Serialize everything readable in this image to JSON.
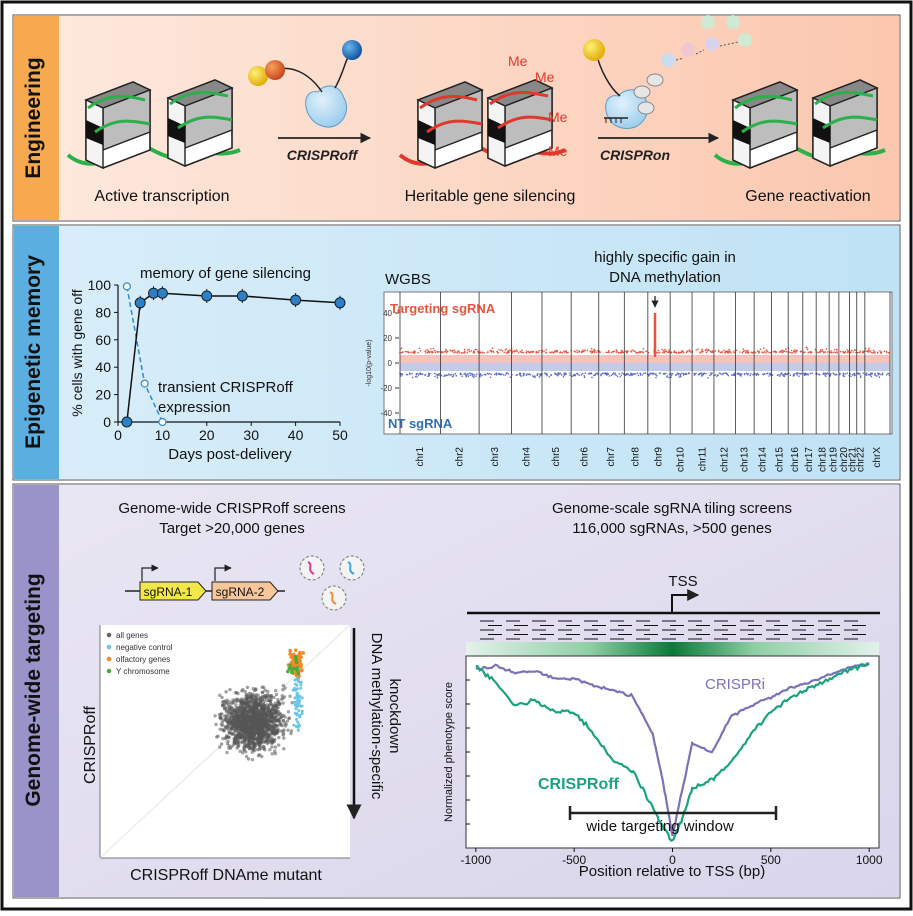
{
  "panels": {
    "engineering": {
      "label": "Engineering",
      "caption_active": "Active transcription",
      "caption_silencing": "Heritable gene silencing",
      "caption_reactivation": "Gene reactivation",
      "arrow_off": "CRISPRoff",
      "arrow_on": "CRISPRon",
      "methyl_mark": "Me"
    },
    "memory": {
      "label": "Epigenetic memory",
      "ylabel": "% cells with gene off",
      "xlabel": "Days post-delivery",
      "annotation_memory": "memory of gene silencing",
      "annotation_transient_1": "transient CRISPRoff",
      "annotation_transient_2": "expression",
      "wgbs_title": "WGBS",
      "wgbs_annotation_1": "highly specific gain in",
      "wgbs_annotation_2": "DNA methylation",
      "wgbs_targeting": "Targeting sgRNA",
      "wgbs_nt": "NT sgRNA",
      "wgbs_ylabel": "-log10(p-value)"
    },
    "targeting": {
      "label": "Genome-wide targeting",
      "screens_title_1": "Genome-wide CRISPRoff screens",
      "screens_title_2": "Target >20,000 genes",
      "tiling_title_1": "Genome-scale sgRNA tiling screens",
      "tiling_title_2": "116,000 sgRNAs, >500 genes",
      "sgrna1": "sgRNA-1",
      "sgrna2": "sgRNA-2",
      "scatter_xlabel": "CRISPRoff DNAme mutant",
      "scatter_ylabel": "CRISPRoff",
      "knockdown_1": "DNA methylation-specific",
      "knockdown_2": "knockdown",
      "legend": [
        "all genes",
        "negative control",
        "olfactory genes",
        "Y chromosome"
      ],
      "tss": "TSS",
      "tiling_ylabel": "Normalized phenotype score",
      "tiling_xlabel": "Position relative to TSS (bp)",
      "crispri": "CRISPRi",
      "crisproff": "CRISPRoff",
      "window": "wide targeting window"
    }
  },
  "colors": {
    "engineering_band": "#f7a94f",
    "memory_band": "#5aaee0",
    "targeting_band": "#9a93c9",
    "crisproff_green": "#1aa37f",
    "crispri_purple": "#7a72b8",
    "methyl_red": "#e0392b",
    "targeting_red": "#e8553e",
    "nt_blue": "#2f6fb5"
  },
  "chart_data": [
    {
      "type": "line",
      "title": "memory of gene silencing",
      "xlabel": "Days post-delivery",
      "ylabel": "% cells with gene off",
      "xlim": [
        0,
        50
      ],
      "ylim": [
        0,
        100
      ],
      "xticks": [
        0,
        10,
        20,
        30,
        40,
        50
      ],
      "yticks": [
        0,
        20,
        40,
        60,
        80,
        100
      ],
      "series": [
        {
          "name": "memory of gene silencing",
          "x": [
            2,
            5,
            8,
            10,
            20,
            28,
            40,
            50
          ],
          "y": [
            0,
            87,
            94,
            94,
            92,
            92,
            89,
            87
          ]
        },
        {
          "name": "transient CRISPRoff expression",
          "x": [
            2,
            6,
            10
          ],
          "y": [
            99,
            28,
            0
          ]
        }
      ]
    },
    {
      "type": "scatter",
      "title": "WGBS",
      "ylabel": "-log10(p-value)",
      "yticks": [
        40,
        20,
        0,
        -20,
        -40
      ],
      "categories": [
        "chr1",
        "chr2",
        "chr3",
        "chr4",
        "chr5",
        "chr6",
        "chr7",
        "chr8",
        "chr9",
        "chr10",
        "chr11",
        "chr12",
        "chr13",
        "chr14",
        "chr15",
        "chr16",
        "chr17",
        "chr18",
        "chr19",
        "chr20",
        "chr21",
        "chr22",
        "chrX"
      ],
      "series": [
        {
          "name": "Targeting sgRNA",
          "peak_chromosome": "chr9",
          "peak_value": 40
        },
        {
          "name": "NT sgRNA"
        }
      ]
    },
    {
      "type": "scatter",
      "title": "Genome-wide CRISPRoff screens",
      "xlabel": "CRISPRoff DNAme mutant",
      "ylabel": "CRISPRoff",
      "series": [
        {
          "name": "all genes"
        },
        {
          "name": "negative control"
        },
        {
          "name": "olfactory genes"
        },
        {
          "name": "Y chromosome"
        }
      ]
    },
    {
      "type": "line",
      "title": "Genome-scale sgRNA tiling screens",
      "xlabel": "Position relative to TSS (bp)",
      "ylabel": "Normalized phenotype score",
      "xlim": [
        -1050,
        1050
      ],
      "xticks": [
        -1000,
        -500,
        0,
        500,
        1000
      ],
      "series": [
        {
          "name": "CRISPRi",
          "x": [
            -1000,
            -900,
            -800,
            -700,
            -600,
            -500,
            -400,
            -300,
            -200,
            -100,
            -50,
            0,
            50,
            100,
            200,
            300,
            400,
            500,
            600,
            700,
            800,
            900,
            1000
          ],
          "y": [
            0.95,
            0.97,
            0.93,
            0.94,
            0.9,
            0.9,
            0.86,
            0.84,
            0.8,
            0.6,
            0.35,
            0.05,
            0.3,
            0.55,
            0.5,
            0.7,
            0.75,
            0.8,
            0.85,
            0.88,
            0.92,
            0.96,
            0.98
          ]
        },
        {
          "name": "CRISPRoff",
          "x": [
            -1000,
            -900,
            -800,
            -700,
            -600,
            -500,
            -400,
            -300,
            -200,
            -100,
            -50,
            0,
            50,
            100,
            200,
            300,
            400,
            500,
            600,
            700,
            800,
            900,
            1000
          ],
          "y": [
            0.97,
            0.88,
            0.75,
            0.78,
            0.72,
            0.72,
            0.6,
            0.45,
            0.4,
            0.2,
            0.1,
            0.02,
            0.15,
            0.3,
            0.35,
            0.45,
            0.6,
            0.72,
            0.8,
            0.85,
            0.9,
            0.95,
            0.98
          ]
        }
      ],
      "annotation": "wide targeting window",
      "window": [
        -500,
        500
      ]
    }
  ]
}
